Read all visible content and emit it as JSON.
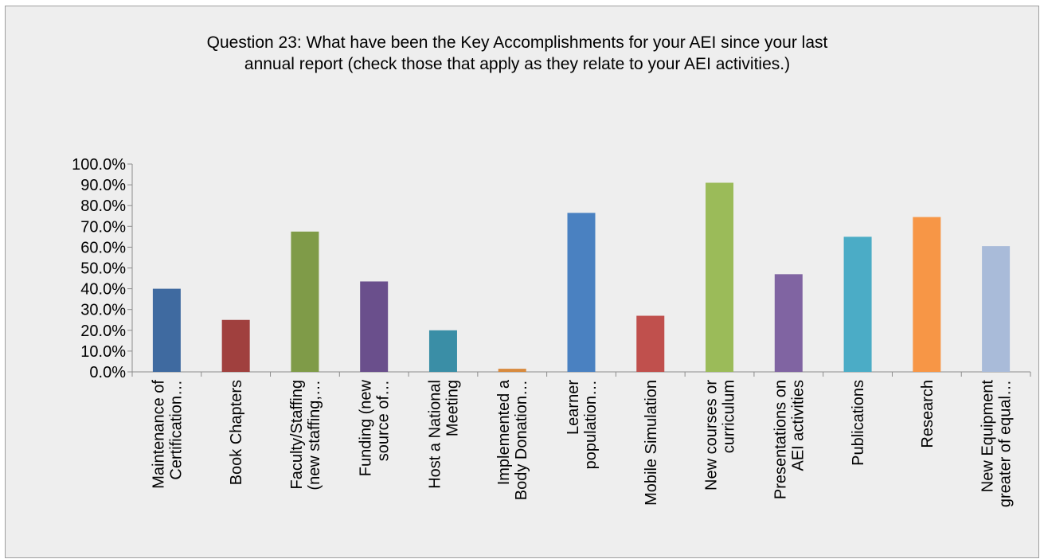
{
  "chart_data": {
    "type": "bar",
    "title_lines": [
      "Question 23: What have been the Key Accomplishments for your AEI since your last",
      "annual report (check those that apply as they relate to your AEI activities.)"
    ],
    "categories": [
      [
        "Maintenance of",
        "Certification…"
      ],
      [
        "Book Chapters"
      ],
      [
        "Faculty/Staffing",
        "(new staffing,…"
      ],
      [
        "Funding (new",
        "source of…"
      ],
      [
        "Host a National",
        "Meeting"
      ],
      [
        "Implemented a",
        "Body Donation…"
      ],
      [
        "Learner",
        "population…"
      ],
      [
        "Mobile Simulation"
      ],
      [
        "New courses or",
        "curriculum"
      ],
      [
        "Presentations on",
        "AEI activities"
      ],
      [
        "Publications"
      ],
      [
        "Research"
      ],
      [
        "New Equipment",
        "greater of equal…"
      ]
    ],
    "values": [
      40.0,
      25.0,
      67.5,
      43.5,
      20.0,
      1.5,
      76.5,
      27.0,
      91.0,
      47.0,
      65.0,
      74.5,
      60.5
    ],
    "colors": [
      "#3f6aa0",
      "#a0403e",
      "#7f9b48",
      "#6a4f8c",
      "#3a8ea6",
      "#d88a3e",
      "#4a81c1",
      "#c0504d",
      "#9bbb59",
      "#8064a2",
      "#4bacc6",
      "#f79646",
      "#a9bbd9"
    ],
    "ylim": [
      0,
      100
    ],
    "ytick_step": 10,
    "ytick_format": "percent_1dp",
    "grid": false
  }
}
